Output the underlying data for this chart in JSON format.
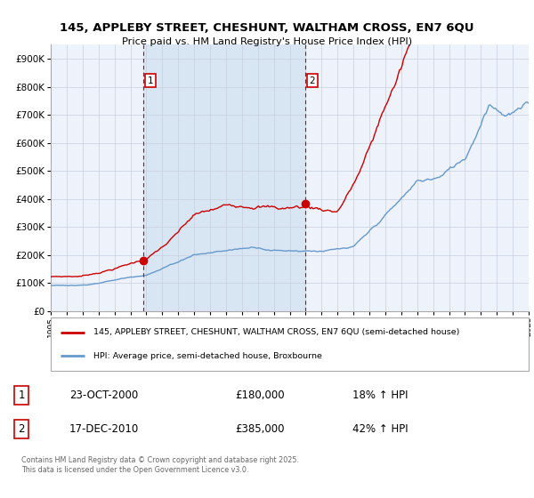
{
  "title": "145, APPLEBY STREET, CHESHUNT, WALTHAM CROSS, EN7 6QU",
  "subtitle": "Price paid vs. HM Land Registry's House Price Index (HPI)",
  "legend_line1": "145, APPLEBY STREET, CHESHUNT, WALTHAM CROSS, EN7 6QU (semi-detached house)",
  "legend_line2": "HPI: Average price, semi-detached house, Broxbourne",
  "transaction1_date": "23-OCT-2000",
  "transaction1_price": "£180,000",
  "transaction1_hpi": "18% ↑ HPI",
  "transaction2_date": "17-DEC-2010",
  "transaction2_price": "£385,000",
  "transaction2_hpi": "42% ↑ HPI",
  "footer": "Contains HM Land Registry data © Crown copyright and database right 2025.\nThis data is licensed under the Open Government Licence v3.0.",
  "red_color": "#cc0000",
  "blue_color": "#6699cc",
  "bg_color": "#ffffff",
  "plot_bg": "#eef2fa",
  "shade_color": "#d8e6f3",
  "grid_color": "#c8d0e0",
  "ylim": [
    0,
    950000
  ],
  "yticks": [
    0,
    100000,
    200000,
    300000,
    400000,
    500000,
    600000,
    700000,
    800000,
    900000
  ],
  "transaction1_x": 2000.82,
  "transaction2_x": 2010.97,
  "start_year": 1995,
  "end_year": 2025
}
